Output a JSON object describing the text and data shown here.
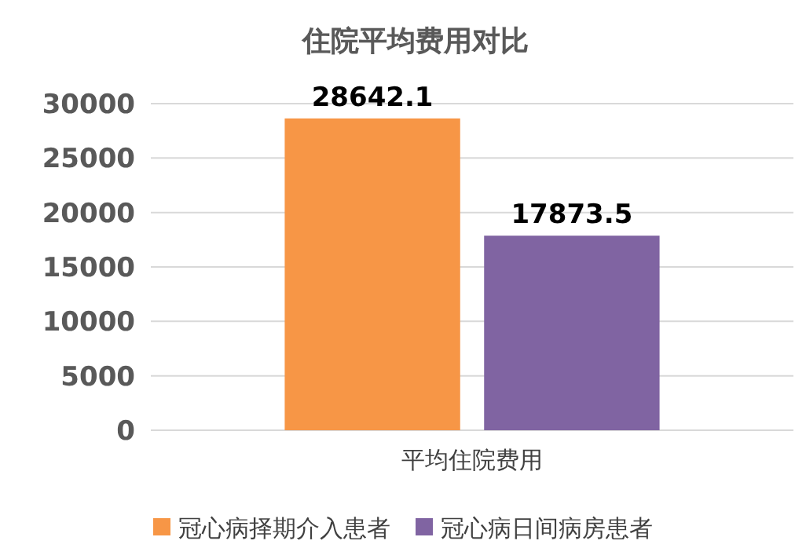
{
  "chart_data": {
    "type": "bar",
    "title": "住院平均费用对比",
    "categories": [
      "平均住院费用"
    ],
    "series": [
      {
        "name": "冠心病择期介入患者",
        "color": "#f79646",
        "values": [
          28642.1
        ]
      },
      {
        "name": "冠心病日间病房患者",
        "color": "#8064a2",
        "values": [
          17873.5
        ]
      }
    ],
    "ylim": [
      0,
      30000
    ],
    "yticks": [
      0,
      5000,
      10000,
      15000,
      20000,
      25000,
      30000
    ],
    "grid": "y",
    "data_labels": true,
    "legend": "bottom"
  }
}
